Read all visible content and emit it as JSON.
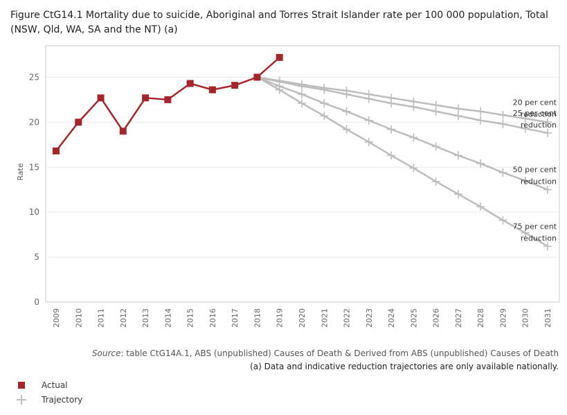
{
  "title": "Figure CtG14.1 Mortality due to suicide, Aboriginal and Torres Strait Islander rate per 100 000 population, Total (NSW, Qld, WA, SA and the NT) (a)",
  "source": {
    "label": "Source",
    "text": ": table CtG14A.1, ABS (unpublished) Causes of Death & Derived from ABS (unpublished) Causes of Death"
  },
  "footnote": "(a) Data and indicative reduction trajectories are only available nationally.",
  "legend": [
    {
      "name": "actual",
      "label": "Actual"
    },
    {
      "name": "trajectory",
      "label": "Trajectory"
    }
  ],
  "colors": {
    "actual": "#a4262c",
    "trajectory": "#bdbdbd",
    "grid": "#ebebeb",
    "axis": "#c8c8c8"
  },
  "chart_data": {
    "type": "line",
    "title": "Figure CtG14.1 Mortality due to suicide, Aboriginal and Torres Strait Islander rate per 100 000 population, Total (NSW, Qld, WA, SA and the NT) (a)",
    "xlabel": "",
    "ylabel": "Rate",
    "ylim": [
      0,
      28.5
    ],
    "yticks": [
      0,
      5,
      10,
      15,
      20,
      25
    ],
    "xlim": [
      2009,
      2031
    ],
    "xticks": [
      2009,
      2010,
      2011,
      2012,
      2013,
      2014,
      2015,
      2016,
      2017,
      2018,
      2019,
      2020,
      2021,
      2022,
      2023,
      2024,
      2025,
      2026,
      2027,
      2028,
      2029,
      2030,
      2031
    ],
    "actual": {
      "name": "Actual",
      "x": [
        2009,
        2010,
        2011,
        2012,
        2013,
        2014,
        2015,
        2016,
        2017,
        2018,
        2019
      ],
      "values": [
        16.8,
        20.0,
        22.7,
        19.0,
        22.7,
        22.5,
        24.3,
        23.6,
        24.1,
        25.0,
        27.2
      ]
    },
    "trajectories": [
      {
        "name": "20 per cent reduction",
        "label_lines": [
          "20 per cent",
          "reduction"
        ],
        "x": [
          2018,
          2019,
          2020,
          2021,
          2022,
          2023,
          2024,
          2025,
          2026,
          2027,
          2028,
          2029,
          2030,
          2031
        ],
        "values": [
          25.0,
          24.6,
          24.2,
          23.8,
          23.5,
          23.1,
          22.7,
          22.3,
          21.9,
          21.5,
          21.2,
          20.8,
          20.4,
          20.0
        ]
      },
      {
        "name": "25 per cent reduction",
        "label_lines": [
          "25 per cent",
          "reduction"
        ],
        "x": [
          2018,
          2019,
          2020,
          2021,
          2022,
          2023,
          2024,
          2025,
          2026,
          2027,
          2028,
          2029,
          2030,
          2031
        ],
        "values": [
          25.0,
          24.5,
          24.0,
          23.6,
          23.1,
          22.6,
          22.1,
          21.7,
          21.2,
          20.7,
          20.2,
          19.8,
          19.3,
          18.8
        ]
      },
      {
        "name": "50 per cent reduction",
        "label_lines": [
          "50 per cent",
          "reduction"
        ],
        "x": [
          2018,
          2019,
          2020,
          2021,
          2022,
          2023,
          2024,
          2025,
          2026,
          2027,
          2028,
          2029,
          2030,
          2031
        ],
        "values": [
          25.0,
          24.0,
          23.1,
          22.1,
          21.2,
          20.2,
          19.2,
          18.3,
          17.3,
          16.3,
          15.4,
          14.4,
          13.5,
          12.5
        ]
      },
      {
        "name": "75 per cent reduction",
        "label_lines": [
          "75 per cent",
          "reduction"
        ],
        "x": [
          2018,
          2019,
          2020,
          2021,
          2022,
          2023,
          2024,
          2025,
          2026,
          2027,
          2028,
          2029,
          2030,
          2031
        ],
        "values": [
          25.0,
          23.6,
          22.1,
          20.7,
          19.2,
          17.8,
          16.3,
          14.9,
          13.4,
          12.0,
          10.6,
          9.1,
          7.7,
          6.2
        ]
      }
    ]
  }
}
